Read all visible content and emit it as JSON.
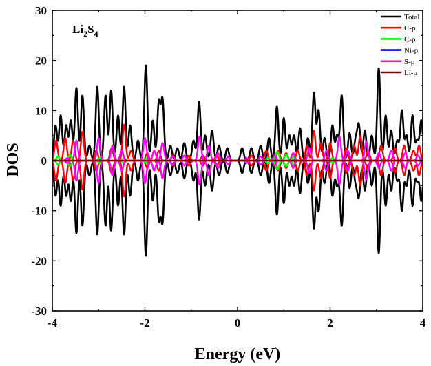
{
  "chart_data": {
    "type": "line",
    "title": "",
    "annotation": {
      "base": "Li",
      "sub1": "2",
      "mid": "S",
      "sub2": "4"
    },
    "xlabel": "Energy (eV)",
    "ylabel": "DOS",
    "xlim": [
      -4,
      4
    ],
    "ylim": [
      -30,
      30
    ],
    "xticks": [
      -4,
      -2,
      0,
      2,
      4
    ],
    "yticks": [
      -30,
      -20,
      -10,
      0,
      10,
      20,
      30
    ],
    "grid": false,
    "legend_position": "top-right",
    "mirror_symmetric": true,
    "series": [
      {
        "name": "Total",
        "color": "#000000",
        "width": 2.6,
        "peaks": [
          [
            -3.93,
            7
          ],
          [
            -3.82,
            9
          ],
          [
            -3.7,
            7
          ],
          [
            -3.6,
            8
          ],
          [
            -3.48,
            14.5
          ],
          [
            -3.35,
            13
          ],
          [
            -3.2,
            3
          ],
          [
            -3.03,
            14.8
          ],
          [
            -2.85,
            13
          ],
          [
            -2.73,
            14
          ],
          [
            -2.58,
            9
          ],
          [
            -2.45,
            14.8
          ],
          [
            -2.32,
            7
          ],
          [
            -2.15,
            4
          ],
          [
            -1.98,
            19
          ],
          [
            -1.83,
            8
          ],
          [
            -1.7,
            11.5
          ],
          [
            -1.62,
            12
          ],
          [
            -1.45,
            3
          ],
          [
            -1.3,
            2.5
          ],
          [
            -1.15,
            3.5
          ],
          [
            -0.95,
            4
          ],
          [
            -0.83,
            11.8
          ],
          [
            -0.7,
            5
          ],
          [
            -0.55,
            6
          ],
          [
            -0.4,
            3
          ],
          [
            -0.22,
            2.5
          ],
          [
            0.1,
            2.5
          ],
          [
            0.3,
            2.5
          ],
          [
            0.5,
            3
          ],
          [
            0.68,
            4.5
          ],
          [
            0.85,
            10.8
          ],
          [
            1.0,
            8.5
          ],
          [
            1.12,
            5
          ],
          [
            1.22,
            5
          ],
          [
            1.35,
            6.5
          ],
          [
            1.52,
            4.5
          ],
          [
            1.65,
            13.5
          ],
          [
            1.75,
            10
          ],
          [
            1.88,
            4.5
          ],
          [
            2.05,
            7
          ],
          [
            2.15,
            5
          ],
          [
            2.25,
            13
          ],
          [
            2.42,
            5.5
          ],
          [
            2.55,
            4
          ],
          [
            2.62,
            7
          ],
          [
            2.75,
            6
          ],
          [
            2.9,
            5
          ],
          [
            3.05,
            18.5
          ],
          [
            3.2,
            9
          ],
          [
            3.32,
            6
          ],
          [
            3.45,
            4
          ],
          [
            3.55,
            10
          ],
          [
            3.65,
            5
          ],
          [
            3.78,
            9
          ],
          [
            3.88,
            4
          ],
          [
            3.97,
            8
          ]
        ]
      },
      {
        "name": "C-p",
        "color": "#ff0000",
        "width": 2.4,
        "peaks": [
          [
            -3.92,
            4
          ],
          [
            -3.72,
            4.5
          ],
          [
            -3.55,
            4
          ],
          [
            -3.35,
            5.8
          ],
          [
            -3.05,
            2
          ],
          [
            -2.72,
            2.5
          ],
          [
            -2.45,
            7.2
          ],
          [
            -2.3,
            2
          ],
          [
            -1.95,
            1.5
          ],
          [
            -1.7,
            2
          ],
          [
            -1.4,
            1
          ],
          [
            -1.05,
            1
          ],
          [
            -0.75,
            1
          ],
          [
            -0.45,
            1
          ],
          [
            0.3,
            1
          ],
          [
            0.62,
            2
          ],
          [
            0.88,
            2
          ],
          [
            1.05,
            1.5
          ],
          [
            1.3,
            2
          ],
          [
            1.5,
            3
          ],
          [
            1.65,
            6
          ],
          [
            1.8,
            3.5
          ],
          [
            2.0,
            3.5
          ],
          [
            2.35,
            2.5
          ],
          [
            2.52,
            3
          ],
          [
            2.65,
            5
          ],
          [
            2.82,
            2
          ],
          [
            3.1,
            3
          ],
          [
            3.4,
            2.5
          ],
          [
            3.6,
            3
          ],
          [
            3.8,
            2
          ],
          [
            3.92,
            3
          ]
        ]
      },
      {
        "name": "C-p",
        "color": "#00ff00",
        "width": 2.4,
        "peaks": [
          [
            -3.88,
            0.8
          ],
          [
            -3.62,
            1.2
          ],
          [
            -2.98,
            0.5
          ],
          [
            -2.45,
            0.5
          ],
          [
            -1.98,
            0.4
          ],
          [
            0.65,
            0.5
          ],
          [
            0.86,
            1.8
          ],
          [
            1.05,
            1.2
          ],
          [
            1.22,
            0.8
          ],
          [
            2.05,
            0.5
          ]
        ]
      },
      {
        "name": "Ni-p",
        "color": "#0000ff",
        "width": 2.0,
        "peaks": []
      },
      {
        "name": "S-p",
        "color": "#ff00ff",
        "width": 2.4,
        "peaks": [
          [
            -3.68,
            0.5
          ],
          [
            -3.48,
            4
          ],
          [
            -3.0,
            4.5
          ],
          [
            -2.7,
            3
          ],
          [
            -2.5,
            2
          ],
          [
            -2.0,
            4.5
          ],
          [
            -1.8,
            2
          ],
          [
            -1.62,
            3.5
          ],
          [
            -1.4,
            0.8
          ],
          [
            -1.15,
            1
          ],
          [
            -0.82,
            4.8
          ],
          [
            -0.62,
            3
          ],
          [
            -0.42,
            1.5
          ],
          [
            -0.2,
            0.8
          ],
          [
            0.2,
            0.5
          ],
          [
            0.5,
            0.8
          ],
          [
            0.8,
            1
          ],
          [
            1.2,
            1.5
          ],
          [
            1.55,
            2.5
          ],
          [
            1.92,
            2
          ],
          [
            2.2,
            4.8
          ],
          [
            2.38,
            2
          ],
          [
            2.78,
            3.8
          ],
          [
            3.05,
            1.5
          ],
          [
            3.32,
            2
          ],
          [
            3.62,
            1.5
          ],
          [
            3.9,
            1
          ]
        ]
      },
      {
        "name": "Li-p",
        "color": "#800000",
        "width": 2.2,
        "peaks": []
      }
    ]
  }
}
